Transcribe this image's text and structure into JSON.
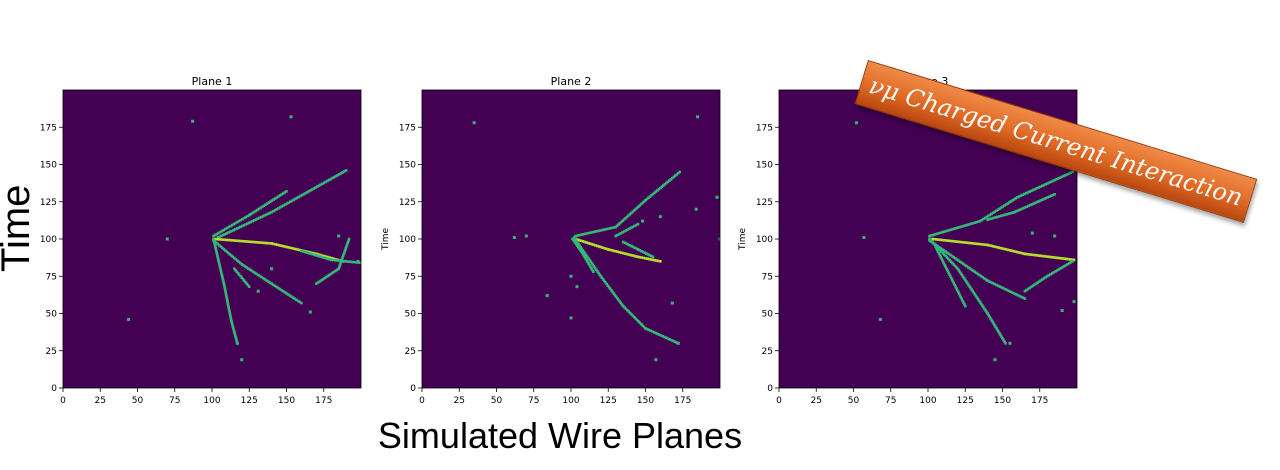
{
  "figure": {
    "ylabel": "Time",
    "xlabel": "Simulated Wire Planes",
    "banner": "νμ Charged Current Interaction"
  },
  "colors": {
    "background": "#440154",
    "hit": "#35b779",
    "hit_bright": "#b5de2b",
    "banner": "#e0651f"
  },
  "chart_data": [
    {
      "type": "heatmap",
      "title": "Plane 1",
      "ylabel": "",
      "xlim": [
        0,
        200
      ],
      "ylim": [
        0,
        200
      ],
      "x_ticks": [
        0,
        25,
        50,
        75,
        100,
        125,
        150,
        175
      ],
      "y_ticks": [
        0,
        25,
        50,
        75,
        100,
        125,
        150,
        175
      ],
      "colormap": "viridis",
      "tracks": [
        {
          "points": [
            [
              101,
              102
            ],
            [
              125,
              116
            ],
            [
              150,
              132
            ]
          ],
          "bright": false
        },
        {
          "points": [
            [
              104,
              101
            ],
            [
              140,
              118
            ],
            [
              190,
              146
            ]
          ],
          "bright": false
        },
        {
          "points": [
            [
              102,
              100
            ],
            [
              140,
              97
            ],
            [
              170,
              90
            ],
            [
              188,
              85
            ]
          ],
          "bright": true
        },
        {
          "points": [
            [
              160,
              92
            ],
            [
              180,
              86
            ],
            [
              200,
              84
            ]
          ],
          "bright": false
        },
        {
          "points": [
            [
              101,
              99
            ],
            [
              120,
              83
            ],
            [
              140,
              70
            ],
            [
              160,
              57
            ]
          ],
          "bright": false
        },
        {
          "points": [
            [
              101,
              100
            ],
            [
              108,
              70
            ],
            [
              113,
              45
            ],
            [
              117,
              30
            ]
          ],
          "bright": false
        },
        {
          "points": [
            [
              115,
              80
            ],
            [
              125,
              68
            ]
          ],
          "bright": false
        },
        {
          "points": [
            [
              170,
              70
            ],
            [
              185,
              80
            ],
            [
              192,
              100
            ]
          ],
          "bright": false
        }
      ],
      "hits": [
        [
          87,
          179
        ],
        [
          153,
          182
        ],
        [
          70,
          100
        ],
        [
          44,
          46
        ],
        [
          120,
          19
        ],
        [
          117,
          30
        ],
        [
          131,
          65
        ],
        [
          140,
          80
        ],
        [
          185,
          102
        ],
        [
          198,
          85
        ],
        [
          166,
          51
        ]
      ]
    },
    {
      "type": "heatmap",
      "title": "Plane 2",
      "ylabel": "Time",
      "xlim": [
        0,
        200
      ],
      "ylim": [
        0,
        200
      ],
      "x_ticks": [
        0,
        25,
        50,
        75,
        100,
        125,
        150,
        175
      ],
      "y_ticks": [
        0,
        25,
        50,
        75,
        100,
        125,
        150,
        175
      ],
      "colormap": "viridis",
      "tracks": [
        {
          "points": [
            [
              103,
              102
            ],
            [
              130,
              108
            ],
            [
              150,
              126
            ],
            [
              173,
              145
            ]
          ],
          "bright": false
        },
        {
          "points": [
            [
              103,
              100
            ],
            [
              125,
              93
            ],
            [
              145,
              88
            ],
            [
              160,
              85
            ]
          ],
          "bright": true
        },
        {
          "points": [
            [
              102,
              101
            ],
            [
              120,
              75
            ],
            [
              135,
              55
            ],
            [
              150,
              40
            ],
            [
              172,
              30
            ]
          ],
          "bright": false
        },
        {
          "points": [
            [
              101,
              100
            ],
            [
              108,
              90
            ],
            [
              115,
              78
            ]
          ],
          "bright": false
        },
        {
          "points": [
            [
              130,
              102
            ],
            [
              145,
              110
            ]
          ],
          "bright": false
        },
        {
          "points": [
            [
              135,
              98
            ],
            [
              145,
              93
            ],
            [
              155,
              88
            ]
          ],
          "bright": false
        }
      ],
      "hits": [
        [
          35,
          178
        ],
        [
          185,
          182
        ],
        [
          62,
          101
        ],
        [
          70,
          102
        ],
        [
          84,
          62
        ],
        [
          100,
          47
        ],
        [
          172,
          30
        ],
        [
          157,
          19
        ],
        [
          184,
          120
        ],
        [
          198,
          128
        ],
        [
          200,
          100
        ],
        [
          168,
          57
        ],
        [
          148,
          112
        ],
        [
          160,
          115
        ],
        [
          100,
          75
        ],
        [
          104,
          68
        ]
      ]
    },
    {
      "type": "heatmap",
      "title": "Plane 3",
      "ylabel": "Time",
      "xlim": [
        0,
        200
      ],
      "ylim": [
        0,
        200
      ],
      "x_ticks": [
        0,
        25,
        50,
        75,
        100,
        125,
        150,
        175
      ],
      "y_ticks": [
        0,
        25,
        50,
        75,
        100,
        125,
        150,
        175
      ],
      "colormap": "viridis",
      "tracks": [
        {
          "points": [
            [
              101,
              102
            ],
            [
              135,
              112
            ],
            [
              160,
              128
            ],
            [
              197,
              145
            ]
          ],
          "bright": false
        },
        {
          "points": [
            [
              103,
              100
            ],
            [
              140,
              96
            ],
            [
              165,
              90
            ],
            [
              198,
              86
            ]
          ],
          "bright": true
        },
        {
          "points": [
            [
              101,
              100
            ],
            [
              120,
              80
            ],
            [
              140,
              50
            ],
            [
              152,
              30
            ]
          ],
          "bright": false
        },
        {
          "points": [
            [
              101,
              99
            ],
            [
              140,
              72
            ],
            [
              165,
              60
            ]
          ],
          "bright": false
        },
        {
          "points": [
            [
              105,
              95
            ],
            [
              125,
              55
            ]
          ],
          "bright": false
        },
        {
          "points": [
            [
              165,
              65
            ],
            [
              180,
              75
            ],
            [
              197,
              85
            ]
          ],
          "bright": false
        },
        {
          "points": [
            [
              140,
              113
            ],
            [
              158,
              118
            ],
            [
              185,
              130
            ]
          ],
          "bright": false
        }
      ],
      "hits": [
        [
          52,
          178
        ],
        [
          57,
          101
        ],
        [
          68,
          46
        ],
        [
          145,
          19
        ],
        [
          155,
          30
        ],
        [
          170,
          104
        ],
        [
          185,
          102
        ],
        [
          198,
          58
        ],
        [
          190,
          52
        ]
      ]
    }
  ]
}
